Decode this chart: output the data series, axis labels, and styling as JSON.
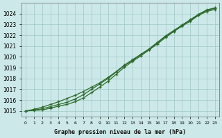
{
  "xlabel": "Graphe pression niveau de la mer (hPa)",
  "hours": [
    0,
    1,
    2,
    3,
    4,
    5,
    6,
    7,
    8,
    9,
    10,
    11,
    12,
    13,
    14,
    15,
    16,
    17,
    18,
    19,
    20,
    21,
    22,
    23
  ],
  "line1": [
    1015.0,
    1015.1,
    1015.2,
    1015.4,
    1015.6,
    1015.8,
    1016.1,
    1016.5,
    1017.0,
    1017.5,
    1018.0,
    1018.6,
    1019.2,
    1019.7,
    1020.2,
    1020.7,
    1021.3,
    1021.9,
    1022.4,
    1022.9,
    1023.4,
    1023.9,
    1024.3,
    1024.5
  ],
  "line2": [
    1015.0,
    1015.15,
    1015.35,
    1015.6,
    1015.85,
    1016.15,
    1016.45,
    1016.8,
    1017.2,
    1017.6,
    1018.1,
    1018.65,
    1019.25,
    1019.75,
    1020.25,
    1020.75,
    1021.35,
    1021.95,
    1022.45,
    1022.95,
    1023.45,
    1023.95,
    1024.35,
    1024.55
  ],
  "line3": [
    1015.0,
    1015.05,
    1015.1,
    1015.25,
    1015.45,
    1015.6,
    1015.85,
    1016.2,
    1016.7,
    1017.2,
    1017.75,
    1018.4,
    1019.05,
    1019.6,
    1020.1,
    1020.65,
    1021.2,
    1021.8,
    1022.35,
    1022.85,
    1023.3,
    1023.85,
    1024.2,
    1024.4
  ],
  "line_color": "#2d6a2d",
  "bg_color": "#cce8e8",
  "grid_color": "#a0c8c8",
  "ylim_min": 1014.5,
  "ylim_max": 1025.0,
  "xlim_min": -0.5,
  "xlim_max": 23.5,
  "yticks": [
    1015,
    1016,
    1017,
    1018,
    1019,
    1020,
    1021,
    1022,
    1023,
    1024
  ],
  "xticks": [
    0,
    1,
    2,
    3,
    4,
    5,
    6,
    7,
    8,
    9,
    10,
    11,
    12,
    13,
    14,
    15,
    16,
    17,
    18,
    19,
    20,
    21,
    22,
    23
  ],
  "xlabel_fontsize": 6.0,
  "ytick_fontsize": 5.5,
  "xtick_fontsize": 4.5
}
